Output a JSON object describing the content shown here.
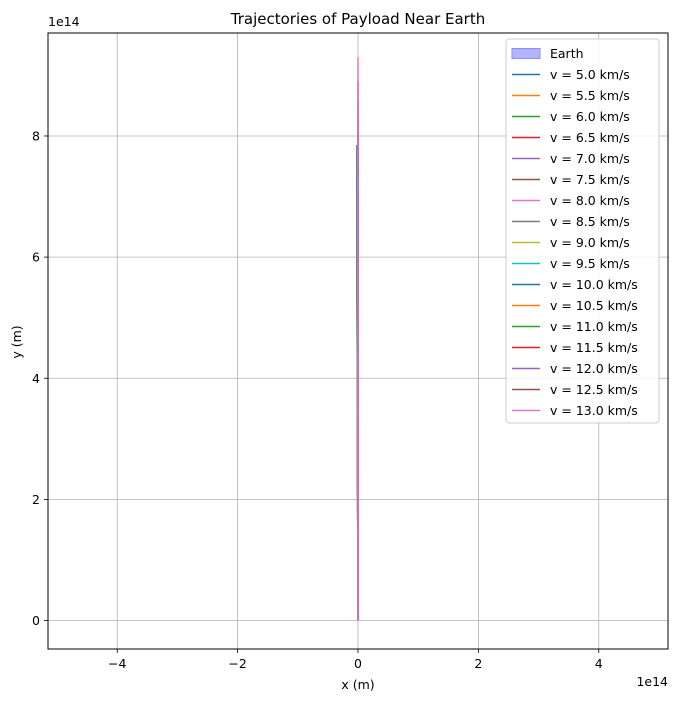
{
  "chart_data": {
    "type": "line",
    "title": "Trajectories of Payload Near Earth",
    "xlabel": "x (m)",
    "ylabel": "y (m)",
    "x_offset_label": "1e14",
    "y_offset_label": "1e14",
    "xlim": [
      -5.15,
      5.15
    ],
    "ylim": [
      -0.47,
      9.7
    ],
    "x_ticks": [
      -4,
      -2,
      0,
      2,
      4
    ],
    "x_tick_labels": [
      "−4",
      "−2",
      "0",
      "2",
      "4"
    ],
    "y_ticks": [
      0,
      2,
      4,
      6,
      8
    ],
    "y_tick_labels": [
      "0",
      "2",
      "4",
      "6",
      "8"
    ],
    "grid": true,
    "legend_position": "top-right",
    "earth": {
      "name": "Earth",
      "color": "#b3b3ff",
      "edge_color": "#8c8cff"
    },
    "series": [
      {
        "name": "v = 5.0 km/s",
        "color": "#1f77b4",
        "x": [
          0,
          -0.02
        ],
        "y": [
          0,
          6.7
        ]
      },
      {
        "name": "v = 5.5 km/s",
        "color": "#ff7f0e",
        "x": [
          0,
          -0.02
        ],
        "y": [
          0,
          6.9
        ]
      },
      {
        "name": "v = 6.0 km/s",
        "color": "#2ca02c",
        "x": [
          0,
          -0.02
        ],
        "y": [
          0,
          7.1
        ]
      },
      {
        "name": "v = 6.5 km/s",
        "color": "#d62728",
        "x": [
          0,
          -0.02
        ],
        "y": [
          0,
          7.3
        ]
      },
      {
        "name": "v = 7.0 km/s",
        "color": "#9467bd",
        "x": [
          0,
          -0.02
        ],
        "y": [
          0,
          7.5
        ]
      },
      {
        "name": "v = 7.5 km/s",
        "color": "#8c564b",
        "x": [
          0,
          -0.02
        ],
        "y": [
          0,
          7.6
        ]
      },
      {
        "name": "v = 8.0 km/s",
        "color": "#e377c2",
        "x": [
          0,
          -0.02
        ],
        "y": [
          0,
          7.7
        ]
      },
      {
        "name": "v = 8.5 km/s",
        "color": "#7f7f7f",
        "x": [
          0,
          -0.02
        ],
        "y": [
          0,
          7.85
        ]
      },
      {
        "name": "v = 9.0 km/s",
        "color": "#bcbd22",
        "x": [
          0,
          -0.01
        ],
        "y": [
          0,
          7.6
        ]
      },
      {
        "name": "v = 9.5 km/s",
        "color": "#17becf",
        "x": [
          0,
          -0.01
        ],
        "y": [
          0,
          7.4
        ]
      },
      {
        "name": "v = 10.0 km/s",
        "color": "#1f77b4",
        "x": [
          0,
          -0.01
        ],
        "y": [
          0,
          7.8
        ]
      },
      {
        "name": "v = 10.5 km/s",
        "color": "#ff7f0e",
        "x": [
          0,
          0.0
        ],
        "y": [
          0,
          8.0
        ]
      },
      {
        "name": "v = 11.0 km/s",
        "color": "#2ca02c",
        "x": [
          0,
          0.0
        ],
        "y": [
          0,
          8.1
        ]
      },
      {
        "name": "v = 11.5 km/s",
        "color": "#d62728",
        "x": [
          0,
          0.0
        ],
        "y": [
          0,
          8.3
        ]
      },
      {
        "name": "v = 12.0 km/s",
        "color": "#9467bd",
        "x": [
          0,
          0.0
        ],
        "y": [
          0,
          8.6
        ]
      },
      {
        "name": "v = 12.5 km/s",
        "color": "#8c564b",
        "x": [
          0,
          0.0
        ],
        "y": [
          0,
          8.9
        ]
      },
      {
        "name": "v = 13.0 km/s",
        "color": "#e377c2",
        "x": [
          0,
          0.0
        ],
        "y": [
          0,
          9.3
        ]
      }
    ]
  }
}
